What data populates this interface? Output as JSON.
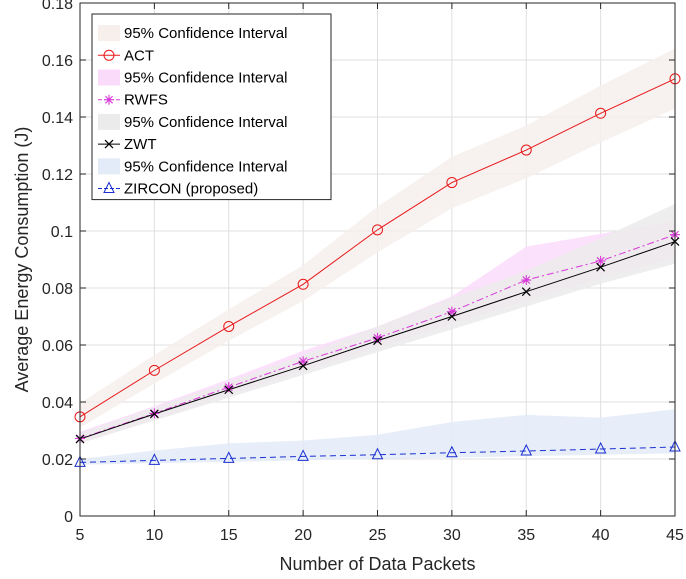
{
  "chart_data": {
    "type": "line",
    "title": "",
    "xlabel": "Number of Data Packets",
    "ylabel": "Average Energy Consumption (J)",
    "x": [
      5,
      10,
      15,
      20,
      25,
      30,
      35,
      40,
      45
    ],
    "xlim": [
      5,
      45
    ],
    "ylim": [
      0,
      0.18
    ],
    "x_ticks": [
      "5",
      "10",
      "15",
      "20",
      "25",
      "30",
      "35",
      "40",
      "45"
    ],
    "y_ticks": [
      "0",
      "0.02",
      "0.04",
      "0.06",
      "0.08",
      "0.1",
      "0.12",
      "0.14",
      "0.16",
      "0.18"
    ],
    "grid": true,
    "legend_position": "top-left",
    "series": [
      {
        "name": "ACT",
        "color": "#e8191b",
        "marker": "circle",
        "line_style": "solid",
        "values": [
          0.0348,
          0.0511,
          0.0665,
          0.0813,
          0.1004,
          0.117,
          0.1284,
          0.1413,
          0.1534
        ],
        "ci_name": "95% Confidence Interval",
        "ci_color": "#f6efec",
        "ci_lower": [
          0.031,
          0.0465,
          0.0615,
          0.0755,
          0.0925,
          0.108,
          0.1185,
          0.131,
          0.143
        ],
        "ci_upper": [
          0.0395,
          0.0565,
          0.0725,
          0.088,
          0.1085,
          0.126,
          0.137,
          0.151,
          0.164
        ]
      },
      {
        "name": "RWFS",
        "color": "#d83ad8",
        "marker": "asterisk",
        "line_style": "dashdot",
        "values": [
          0.0272,
          0.036,
          0.0452,
          0.0543,
          0.0625,
          0.0717,
          0.0828,
          0.0895,
          0.0987
        ],
        "ci_name": "95% Confidence Interval",
        "ci_color": "#fadcfa",
        "ci_lower": [
          0.0255,
          0.034,
          0.0425,
          0.051,
          0.059,
          0.0675,
          0.0755,
          0.0835,
          0.0905
        ],
        "ci_upper": [
          0.0295,
          0.0385,
          0.048,
          0.058,
          0.0665,
          0.077,
          0.0945,
          0.099,
          0.1035
        ]
      },
      {
        "name": "ZWT",
        "color": "#000000",
        "marker": "x",
        "line_style": "solid",
        "values": [
          0.027,
          0.0358,
          0.0443,
          0.0527,
          0.0615,
          0.07,
          0.0787,
          0.0873,
          0.0963
        ],
        "ci_name": "95% Confidence Interval",
        "ci_color": "#ebebeb",
        "ci_lower": [
          0.0255,
          0.0335,
          0.0415,
          0.0495,
          0.0575,
          0.0655,
          0.0735,
          0.0815,
          0.0885
        ],
        "ci_upper": [
          0.029,
          0.038,
          0.047,
          0.0565,
          0.0665,
          0.0765,
          0.086,
          0.0975,
          0.1095
        ]
      },
      {
        "name": "ZIRCON (proposed)",
        "color": "#1a2fd0",
        "marker": "triangle",
        "line_style": "dashed",
        "values": [
          0.0188,
          0.0195,
          0.0202,
          0.0209,
          0.0215,
          0.0222,
          0.0228,
          0.0235,
          0.0242
        ],
        "ci_name": "95% Confidence Interval",
        "ci_color": "#e3ebf8",
        "ci_lower": [
          0.018,
          0.0185,
          0.019,
          0.0195,
          0.02,
          0.0205,
          0.021,
          0.0215,
          0.022
        ],
        "ci_upper": [
          0.02,
          0.023,
          0.0255,
          0.0265,
          0.0285,
          0.033,
          0.0355,
          0.0345,
          0.0375
        ]
      }
    ]
  }
}
